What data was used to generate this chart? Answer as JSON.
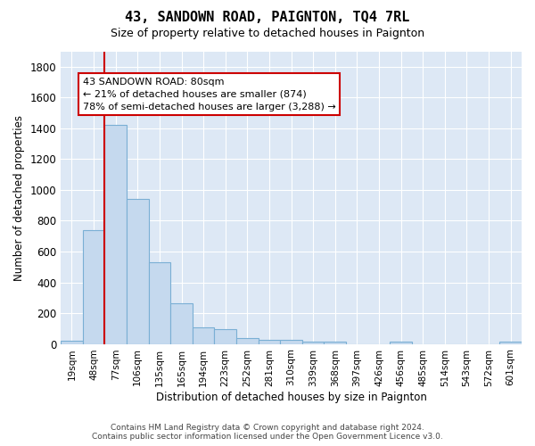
{
  "title": "43, SANDOWN ROAD, PAIGNTON, TQ4 7RL",
  "subtitle": "Size of property relative to detached houses in Paignton",
  "xlabel": "Distribution of detached houses by size in Paignton",
  "ylabel": "Number of detached properties",
  "footer_line1": "Contains HM Land Registry data © Crown copyright and database right 2024.",
  "footer_line2": "Contains public sector information licensed under the Open Government Licence v3.0.",
  "categories": [
    "19sqm",
    "48sqm",
    "77sqm",
    "106sqm",
    "135sqm",
    "165sqm",
    "194sqm",
    "223sqm",
    "252sqm",
    "281sqm",
    "310sqm",
    "339sqm",
    "368sqm",
    "397sqm",
    "426sqm",
    "456sqm",
    "485sqm",
    "514sqm",
    "543sqm",
    "572sqm",
    "601sqm"
  ],
  "values": [
    22,
    740,
    1420,
    940,
    530,
    265,
    105,
    95,
    40,
    28,
    28,
    15,
    12,
    0,
    0,
    15,
    0,
    0,
    0,
    0,
    15
  ],
  "bar_facecolor": "#c5d9ee",
  "bar_edgecolor": "#7aafd4",
  "axes_facecolor": "#dde8f5",
  "grid_color": "#ffffff",
  "ylim": [
    0,
    1900
  ],
  "yticks": [
    0,
    200,
    400,
    600,
    800,
    1000,
    1200,
    1400,
    1600,
    1800
  ],
  "vline_x": 1.5,
  "vline_color": "#cc0000",
  "ann_line1": "43 SANDOWN ROAD: 80sqm",
  "ann_line2": "← 21% of detached houses are smaller (874)",
  "ann_line3": "78% of semi-detached houses are larger (3,288) →",
  "ann_box_color": "#cc0000"
}
